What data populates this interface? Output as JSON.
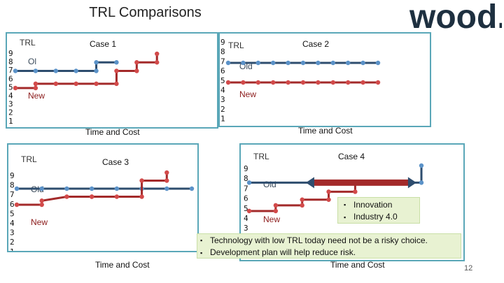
{
  "slide": {
    "title": "TRL Comparisons",
    "page_number": "12"
  },
  "logo": {
    "text": "wood.",
    "color": "#1e3040"
  },
  "colors": {
    "old_line": "#2e4d6e",
    "new_line": "#a32a2a",
    "marker": "#5b92c8",
    "marker_red": "#d24a4a",
    "panel_border": "#5aa7b8",
    "callout_fill": "#e8f2d2"
  },
  "trl_scale": [
    9,
    8,
    7,
    6,
    5,
    4,
    3,
    2,
    1
  ],
  "charts": [
    {
      "title": "Case 1",
      "y_label": "TRL",
      "x_label": "Time and Cost",
      "old_label": "Ol",
      "new_label": "New"
    },
    {
      "title": "Case 2",
      "y_label": "TRL",
      "x_label": "Time and Cost",
      "old_label": "Old",
      "new_label": "New"
    },
    {
      "title": "Case 3",
      "y_label": "TRL",
      "x_label": "Time and Cost",
      "old_label": "Old",
      "new_label": "New"
    },
    {
      "title": "Case 4",
      "y_label": "TRL",
      "x_label": "Time and Cost",
      "old_label": "Old",
      "new_label": "New",
      "callout_items": [
        "Innovation",
        "Industry 4.0"
      ]
    }
  ],
  "takeaways": [
    "Technology with low TRL today need not be a risky choice.",
    "Development plan will help reduce risk."
  ],
  "chart_data": [
    {
      "type": "line",
      "title": "Case 1",
      "xlabel": "Time and Cost",
      "ylabel": "TRL",
      "ylim": [
        1,
        9
      ],
      "series": [
        {
          "name": "Old",
          "x": [
            0,
            1,
            2,
            3,
            4,
            4,
            5
          ],
          "y": [
            7,
            7,
            7,
            7,
            7,
            8,
            8
          ]
        },
        {
          "name": "New",
          "x": [
            0,
            1,
            1,
            2,
            3,
            4,
            5,
            5,
            6,
            6,
            7,
            7
          ],
          "y": [
            5,
            5,
            5.5,
            5.5,
            5.5,
            5.5,
            5.5,
            7,
            7,
            8,
            8,
            9
          ]
        }
      ]
    },
    {
      "type": "line",
      "title": "Case 2",
      "xlabel": "Time and Cost",
      "ylabel": "TRL",
      "ylim": [
        1,
        9
      ],
      "series": [
        {
          "name": "Old",
          "x": [
            0,
            1,
            2,
            3,
            4,
            5,
            6,
            7,
            8,
            9,
            10
          ],
          "y": [
            7,
            7,
            7,
            7,
            7,
            7,
            7,
            7,
            7,
            7,
            7
          ]
        },
        {
          "name": "New",
          "x": [
            0,
            1,
            2,
            3,
            4,
            5,
            6,
            7,
            8,
            9,
            10
          ],
          "y": [
            5,
            5,
            5,
            5,
            5,
            5,
            5,
            5,
            5,
            5,
            5
          ]
        }
      ]
    },
    {
      "type": "line",
      "title": "Case 3",
      "xlabel": "Time and Cost",
      "ylabel": "TRL",
      "ylim": [
        1,
        9
      ],
      "series": [
        {
          "name": "Old",
          "x": [
            0,
            1,
            2,
            3,
            4,
            5,
            6,
            7
          ],
          "y": [
            7,
            7,
            7,
            7,
            7,
            7,
            7,
            7
          ]
        },
        {
          "name": "New",
          "x": [
            0,
            1,
            1,
            2,
            3,
            3,
            4,
            5,
            5,
            6,
            6
          ],
          "y": [
            5,
            5,
            5.5,
            6,
            6,
            6,
            6,
            6,
            8,
            8,
            9
          ]
        }
      ]
    },
    {
      "type": "line",
      "title": "Case 4",
      "xlabel": "Time and Cost",
      "ylabel": "TRL",
      "ylim": [
        1,
        9
      ],
      "series": [
        {
          "name": "Old",
          "x": [
            0,
            4.3,
            6.5,
            6.5
          ],
          "y": [
            7.5,
            7.5,
            7.5,
            9
          ]
        },
        {
          "name": "New",
          "x": [
            0,
            1,
            1,
            2,
            2,
            3,
            3,
            4,
            4
          ],
          "y": [
            5,
            5,
            5.5,
            5.5,
            6,
            6,
            6.7,
            6.7,
            7.5
          ]
        }
      ]
    }
  ]
}
